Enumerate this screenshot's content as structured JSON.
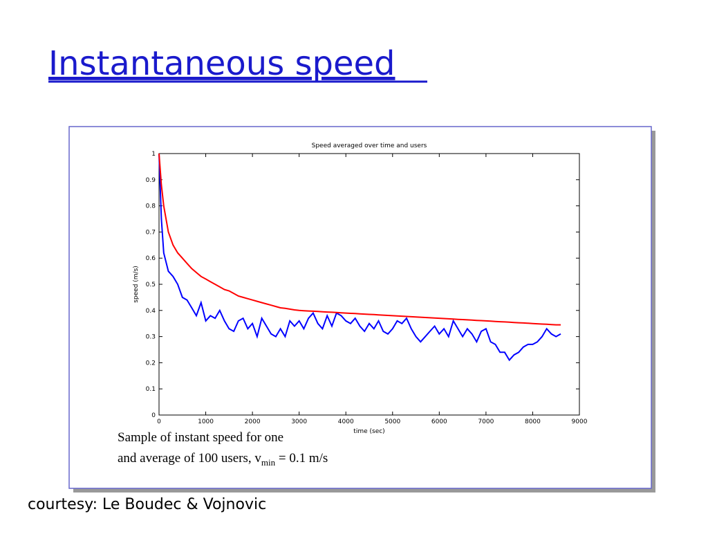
{
  "slide_title": "Instantaneous speed",
  "caption": {
    "line1": "Sample of instant speed for one",
    "line2": "and average of 100 users, v",
    "subscript": "min",
    "line2_end": " = 0.1 m/s"
  },
  "courtesy": "courtesy: Le Boudec & Vojnovic",
  "chart_data": {
    "type": "line",
    "title": "Speed averaged over time and users",
    "xlabel": "time (sec)",
    "ylabel": "speed (m/s)",
    "xlim": [
      0,
      9000
    ],
    "xticks": [
      0,
      1000,
      2000,
      3000,
      4000,
      5000,
      6000,
      7000,
      8000,
      9000
    ],
    "ylim": [
      0,
      1
    ],
    "yticks": [
      0,
      0.1,
      0.2,
      0.3,
      0.4,
      0.5,
      0.6,
      0.7,
      0.8,
      0.9,
      1
    ],
    "grid": false,
    "x": [
      0,
      50,
      100,
      200,
      300,
      400,
      500,
      600,
      700,
      800,
      900,
      1000,
      1100,
      1200,
      1300,
      1400,
      1500,
      1600,
      1700,
      1800,
      1900,
      2000,
      2100,
      2200,
      2300,
      2400,
      2500,
      2600,
      2700,
      2800,
      2900,
      3000,
      3100,
      3200,
      3300,
      3400,
      3500,
      3600,
      3700,
      3800,
      3900,
      4000,
      4100,
      4200,
      4300,
      4400,
      4500,
      4600,
      4700,
      4800,
      4900,
      5000,
      5100,
      5200,
      5300,
      5400,
      5500,
      5600,
      5700,
      5800,
      5900,
      6000,
      6100,
      6200,
      6300,
      6400,
      6500,
      6600,
      6700,
      6800,
      6900,
      7000,
      7100,
      7200,
      7300,
      7400,
      7500,
      7600,
      7700,
      7800,
      7900,
      8000,
      8100,
      8200,
      8300,
      8400,
      8500,
      8600
    ],
    "series": [
      {
        "color": "#0000ff",
        "values": [
          1.0,
          0.75,
          0.62,
          0.55,
          0.53,
          0.5,
          0.45,
          0.44,
          0.41,
          0.38,
          0.43,
          0.36,
          0.38,
          0.37,
          0.4,
          0.36,
          0.33,
          0.32,
          0.36,
          0.37,
          0.33,
          0.35,
          0.3,
          0.37,
          0.34,
          0.31,
          0.3,
          0.33,
          0.3,
          0.36,
          0.34,
          0.36,
          0.33,
          0.37,
          0.39,
          0.35,
          0.33,
          0.38,
          0.34,
          0.39,
          0.38,
          0.36,
          0.35,
          0.37,
          0.34,
          0.32,
          0.35,
          0.33,
          0.36,
          0.32,
          0.31,
          0.33,
          0.36,
          0.35,
          0.37,
          0.33,
          0.3,
          0.28,
          0.3,
          0.32,
          0.34,
          0.31,
          0.33,
          0.3,
          0.36,
          0.33,
          0.3,
          0.33,
          0.31,
          0.28,
          0.32,
          0.33,
          0.28,
          0.27,
          0.24,
          0.24,
          0.21,
          0.23,
          0.24,
          0.26,
          0.27,
          0.27,
          0.28,
          0.3,
          0.33,
          0.31,
          0.3,
          0.31
        ]
      },
      {
        "color": "#ff0000",
        "values": [
          1.0,
          0.88,
          0.8,
          0.7,
          0.65,
          0.62,
          0.6,
          0.58,
          0.56,
          0.545,
          0.53,
          0.52,
          0.51,
          0.5,
          0.49,
          0.48,
          0.475,
          0.465,
          0.455,
          0.45,
          0.445,
          0.44,
          0.435,
          0.43,
          0.425,
          0.42,
          0.415,
          0.41,
          0.408,
          0.405,
          0.402,
          0.4,
          0.399,
          0.398,
          0.397,
          0.396,
          0.395,
          0.394,
          0.393,
          0.392,
          0.391,
          0.39,
          0.389,
          0.388,
          0.387,
          0.386,
          0.385,
          0.384,
          0.383,
          0.382,
          0.381,
          0.38,
          0.379,
          0.378,
          0.377,
          0.376,
          0.375,
          0.374,
          0.373,
          0.372,
          0.371,
          0.37,
          0.369,
          0.368,
          0.367,
          0.366,
          0.365,
          0.364,
          0.363,
          0.362,
          0.361,
          0.36,
          0.359,
          0.358,
          0.357,
          0.356,
          0.355,
          0.354,
          0.353,
          0.352,
          0.351,
          0.35,
          0.349,
          0.348,
          0.347,
          0.346,
          0.345,
          0.345
        ]
      }
    ]
  }
}
